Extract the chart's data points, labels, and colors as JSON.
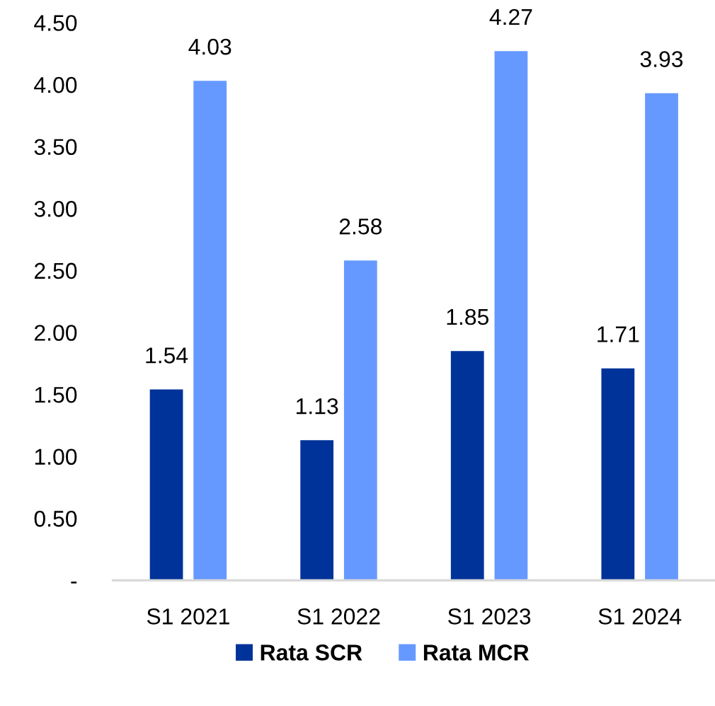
{
  "chart_data": {
    "type": "bar",
    "categories": [
      "S1 2021",
      "S1 2022",
      "S1 2023",
      "S1 2024"
    ],
    "series": [
      {
        "name": "Rata SCR",
        "color": "#003399",
        "values": [
          1.54,
          1.13,
          1.85,
          1.71
        ]
      },
      {
        "name": "Rata MCR",
        "color": "#6699ff",
        "values": [
          4.03,
          2.58,
          4.27,
          3.93
        ]
      }
    ],
    "ylim": [
      0,
      4.5
    ],
    "yticks": [
      {
        "value": 0,
        "label": "-"
      },
      {
        "value": 0.5,
        "label": "0.50"
      },
      {
        "value": 1,
        "label": "1.00"
      },
      {
        "value": 1.5,
        "label": "1.50"
      },
      {
        "value": 2,
        "label": "2.00"
      },
      {
        "value": 2.5,
        "label": "2.50"
      },
      {
        "value": 3,
        "label": "3.00"
      },
      {
        "value": 3.5,
        "label": "3.50"
      },
      {
        "value": 4,
        "label": "4.00"
      },
      {
        "value": 4.5,
        "label": "4.50"
      }
    ],
    "data_labels": true,
    "grid": false,
    "legend": "bottom"
  }
}
